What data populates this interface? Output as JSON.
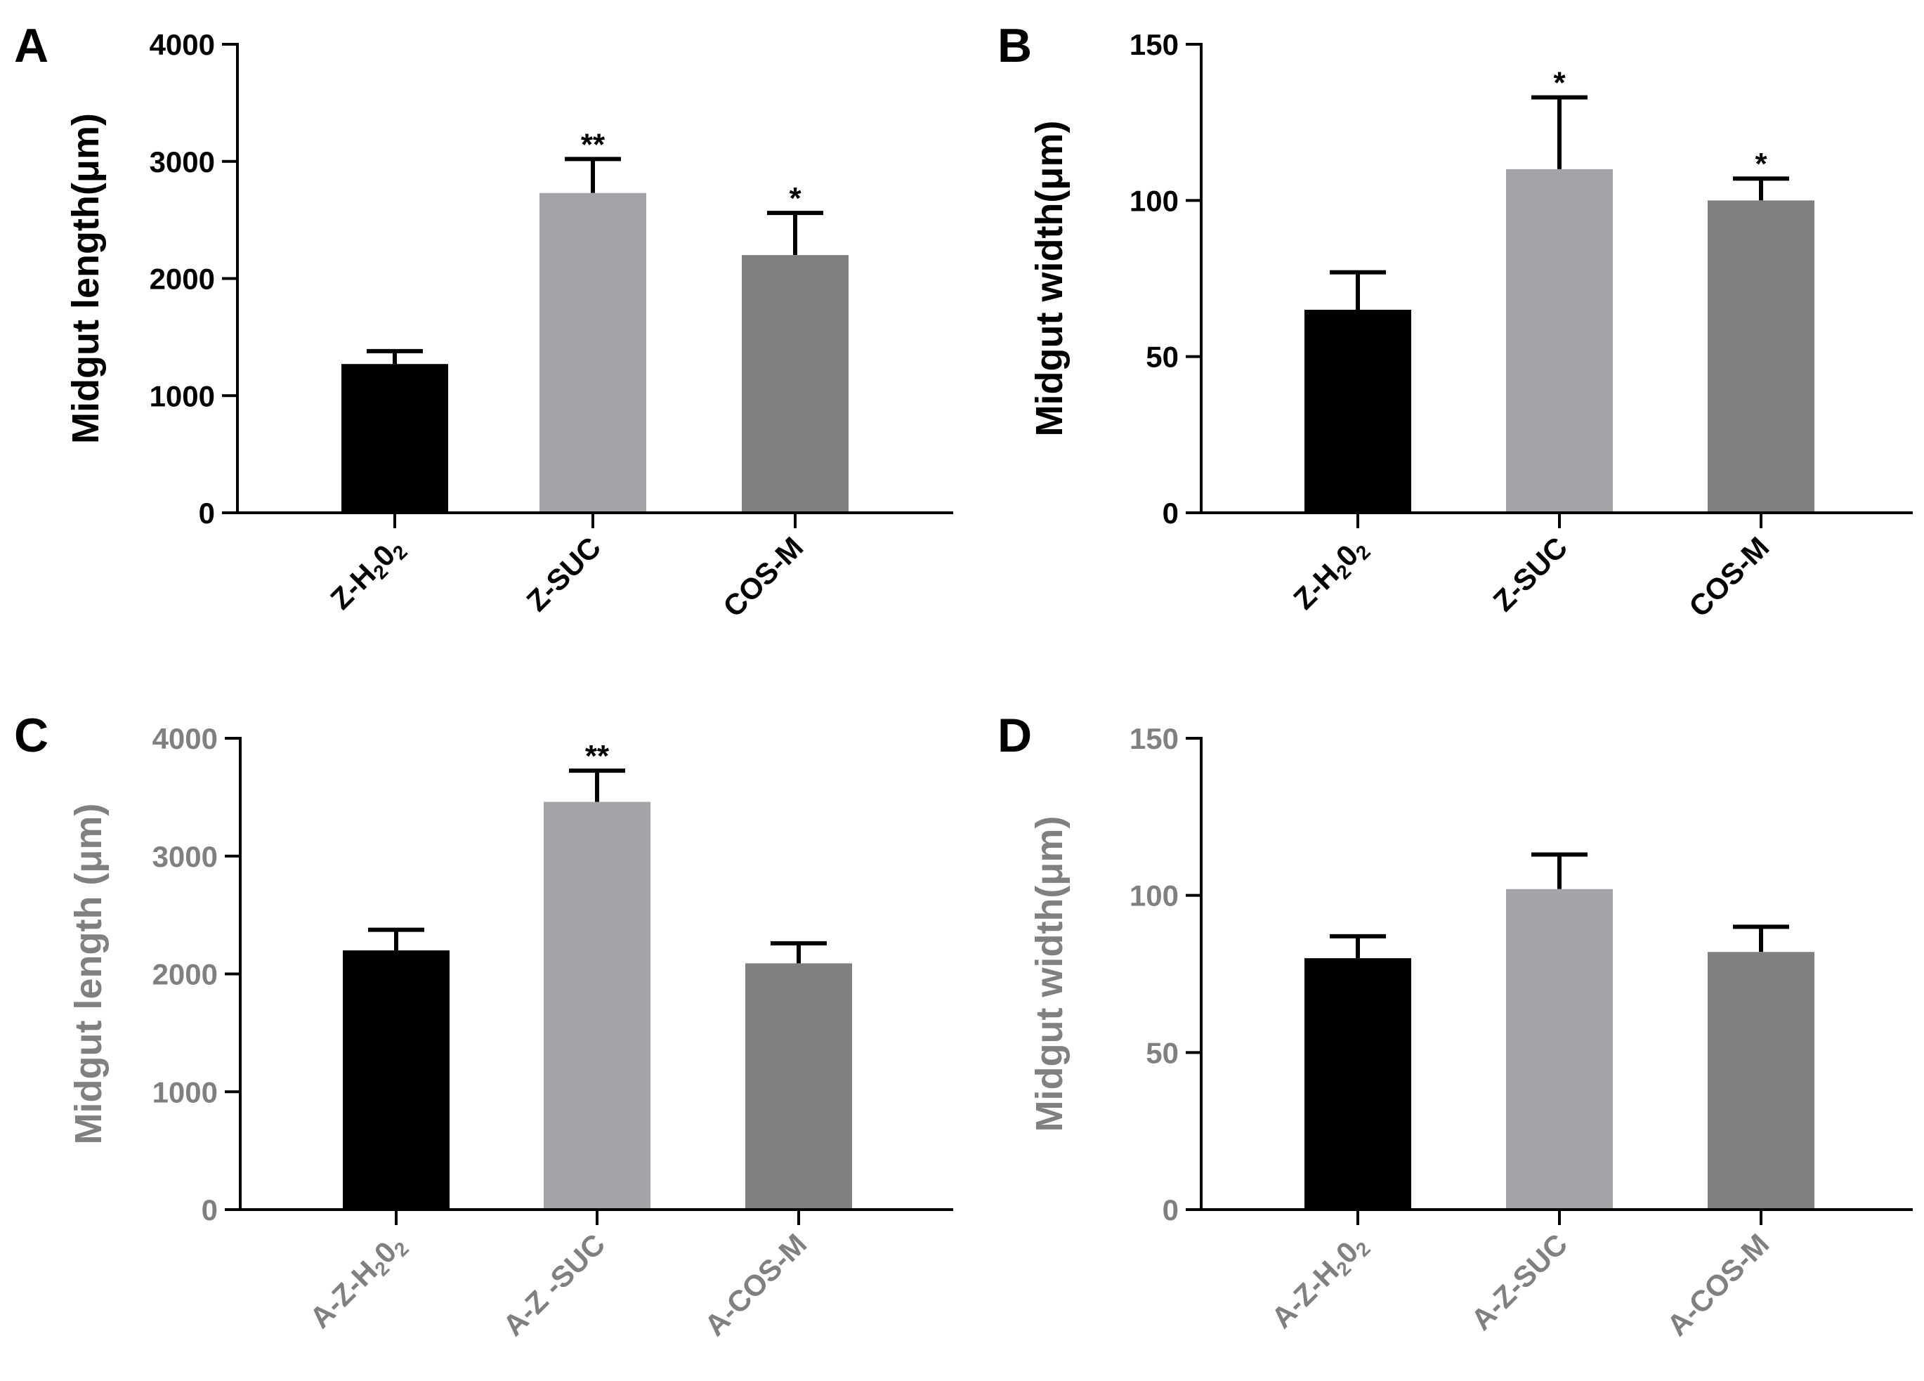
{
  "chart_data": [
    {
      "panel": "A",
      "type": "bar",
      "ylabel": "Midgut length(μm)",
      "yticks": [
        0,
        1000,
        2000,
        3000,
        4000
      ],
      "ylim": [
        0,
        4000
      ],
      "categories": [
        {
          "main": "Z-H",
          "sub": "2",
          "mid": "0",
          "sub2": "2"
        },
        {
          "main": "Z-SUC"
        },
        {
          "main": "COS-M"
        }
      ],
      "values": [
        1270,
        2730,
        2200
      ],
      "errors": [
        110,
        290,
        360
      ],
      "significance": [
        "",
        "**",
        "*"
      ],
      "colors": [
        "#000000",
        "#a4a3a8",
        "#808080"
      ],
      "text_color": "#000000"
    },
    {
      "panel": "B",
      "type": "bar",
      "ylabel": "Midgut width(μm)",
      "yticks": [
        0,
        50,
        100,
        150
      ],
      "ylim": [
        0,
        150
      ],
      "categories": [
        {
          "main": "Z-H",
          "sub": "2",
          "mid": "0",
          "sub2": "2"
        },
        {
          "main": "Z-SUC"
        },
        {
          "main": "COS-M"
        }
      ],
      "values": [
        65,
        110,
        100
      ],
      "errors": [
        12,
        23,
        7
      ],
      "significance": [
        "",
        "*",
        "*"
      ],
      "colors": [
        "#000000",
        "#a4a3a8",
        "#808080"
      ],
      "text_color": "#000000"
    },
    {
      "panel": "C",
      "type": "bar",
      "ylabel": "Midgut length (μm)",
      "yticks": [
        0,
        1000,
        2000,
        3000,
        4000
      ],
      "ylim": [
        0,
        4000
      ],
      "categories": [
        {
          "main": "A-Z-H",
          "sub": "2",
          "mid": "0",
          "sub2": "2"
        },
        {
          "main": "A-Z -SUC"
        },
        {
          "main": "A-COS-M"
        }
      ],
      "values": [
        2200,
        3460,
        2090
      ],
      "errors": [
        175,
        265,
        170
      ],
      "significance": [
        "",
        "**",
        ""
      ],
      "colors": [
        "#000000",
        "#a4a3a8",
        "#808080"
      ],
      "text_color": "#808080"
    },
    {
      "panel": "D",
      "type": "bar",
      "ylabel": "Midgut width(μm)",
      "yticks": [
        0,
        50,
        100,
        150
      ],
      "ylim": [
        0,
        150
      ],
      "categories": [
        {
          "main": "A-Z-H",
          "sub": "2",
          "mid": "0",
          "sub2": "2"
        },
        {
          "main": "A-Z-SUC"
        },
        {
          "main": "A-COS-M"
        }
      ],
      "values": [
        80,
        102,
        82
      ],
      "errors": [
        7,
        11,
        8
      ],
      "significance": [
        "",
        "",
        ""
      ],
      "colors": [
        "#000000",
        "#a4a3a8",
        "#808080"
      ],
      "text_color": "#808080"
    }
  ]
}
